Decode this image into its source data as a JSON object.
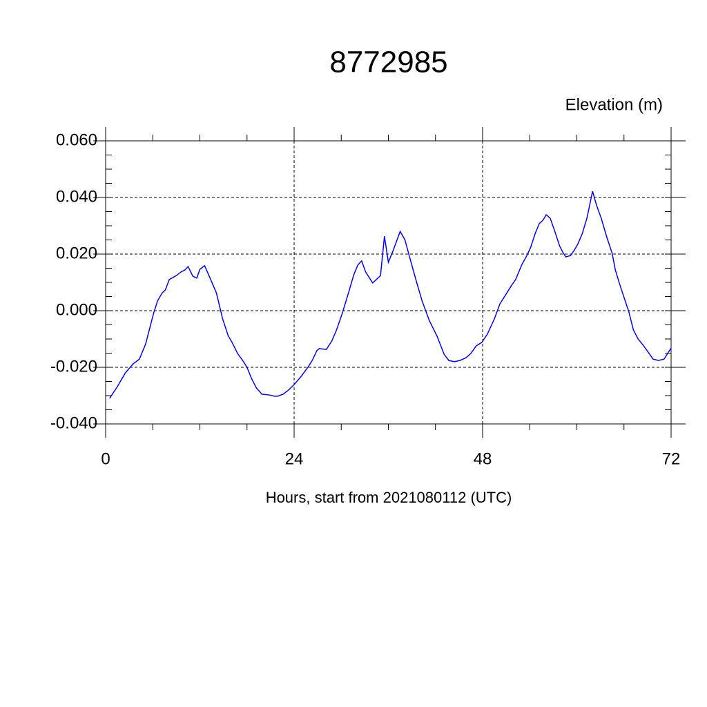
{
  "chart_data": {
    "type": "line",
    "title": "8772985",
    "y_label": "Elevation (m)",
    "x_label": "Hours, start from 2021080112 (UTC)",
    "xlim": [
      0,
      72
    ],
    "xticks": [
      0,
      24,
      48,
      72
    ],
    "ylim": [
      -0.04,
      0.06
    ],
    "yticks": [
      {
        "value": -0.04,
        "label": "-0.040"
      },
      {
        "value": -0.02,
        "label": "-0.020"
      },
      {
        "value": 0,
        "label": "0.000"
      },
      {
        "value": 0.02,
        "label": "0.020"
      },
      {
        "value": 0.04,
        "label": "0.040"
      },
      {
        "value": 0.06,
        "label": "0.060"
      }
    ],
    "grid": true,
    "x": [
      0.5,
      1.5,
      2.5,
      3.5,
      4.3,
      5.1,
      6.1,
      6.6,
      7.2,
      7.6,
      8.1,
      9,
      9.6,
      10.1,
      10.5,
      11.1,
      11.6,
      12,
      12.6,
      13.3,
      14.1,
      14.9,
      15.6,
      16.1,
      16.8,
      17.5,
      18,
      18.6,
      19.2,
      19.9,
      20.9,
      21.5,
      21.9,
      22.6,
      23.3,
      24,
      24.9,
      25.8,
      26.3,
      26.9,
      27.2,
      28.1,
      28.8,
      29.4,
      30.1,
      30.9,
      31.6,
      32.1,
      32.6,
      33.1,
      34,
      35,
      35.5,
      36,
      36.6,
      37.5,
      38.1,
      38.7,
      39.5,
      40.3,
      41.2,
      42.2,
      43.1,
      43.7,
      44.4,
      45.1,
      45.9,
      46.5,
      47.2,
      47.9,
      48.6,
      49.5,
      50.2,
      51,
      51.7,
      52.2,
      53,
      53.6,
      54.1,
      54.7,
      55.2,
      55.7,
      56.1,
      56.6,
      57.2,
      57.8,
      58.2,
      58.6,
      59.2,
      59.7,
      60.1,
      60.7,
      61.3,
      62,
      62.5,
      63.1,
      63.8,
      64.5,
      64.9,
      65.4,
      66.1,
      66.6,
      67.2,
      67.8,
      68.5,
      69.2,
      69.7,
      70.4,
      71.1,
      72
    ],
    "series": [
      {
        "name": "Elevation",
        "color": "#0000ff",
        "values": [
          -0.031,
          -0.0268,
          -0.022,
          -0.0188,
          -0.0171,
          -0.0117,
          -0.001,
          0.0034,
          0.0063,
          0.0073,
          0.011,
          0.0124,
          0.0137,
          0.0144,
          0.0156,
          0.0122,
          0.0115,
          0.0146,
          0.0159,
          0.0115,
          0.0063,
          -0.0029,
          -0.0088,
          -0.0112,
          -0.0151,
          -0.0178,
          -0.02,
          -0.0241,
          -0.0273,
          -0.0295,
          -0.0298,
          -0.0302,
          -0.0302,
          -0.0295,
          -0.028,
          -0.0261,
          -0.0232,
          -0.0198,
          -0.0176,
          -0.0141,
          -0.0134,
          -0.0137,
          -0.0107,
          -0.0068,
          -0.0012,
          0.0061,
          0.0127,
          0.0161,
          0.0176,
          0.0137,
          0.0098,
          0.0124,
          0.0263,
          0.0171,
          0.0212,
          0.028,
          0.0251,
          0.019,
          0.011,
          0.0034,
          -0.0034,
          -0.009,
          -0.0154,
          -0.0176,
          -0.018,
          -0.0176,
          -0.0166,
          -0.0151,
          -0.0124,
          -0.0112,
          -0.0083,
          -0.0029,
          0.0024,
          0.0059,
          0.009,
          0.011,
          0.0163,
          0.0193,
          0.0222,
          0.0273,
          0.0307,
          0.032,
          0.0339,
          0.0327,
          0.028,
          0.0229,
          0.0207,
          0.019,
          0.0195,
          0.0215,
          0.0234,
          0.0273,
          0.0329,
          0.0422,
          0.0373,
          0.0327,
          0.0261,
          0.0202,
          0.0144,
          0.0098,
          0.0039,
          -0.0002,
          -0.0068,
          -0.01,
          -0.0124,
          -0.0151,
          -0.0171,
          -0.0176,
          -0.0171,
          -0.0132
        ]
      }
    ]
  }
}
